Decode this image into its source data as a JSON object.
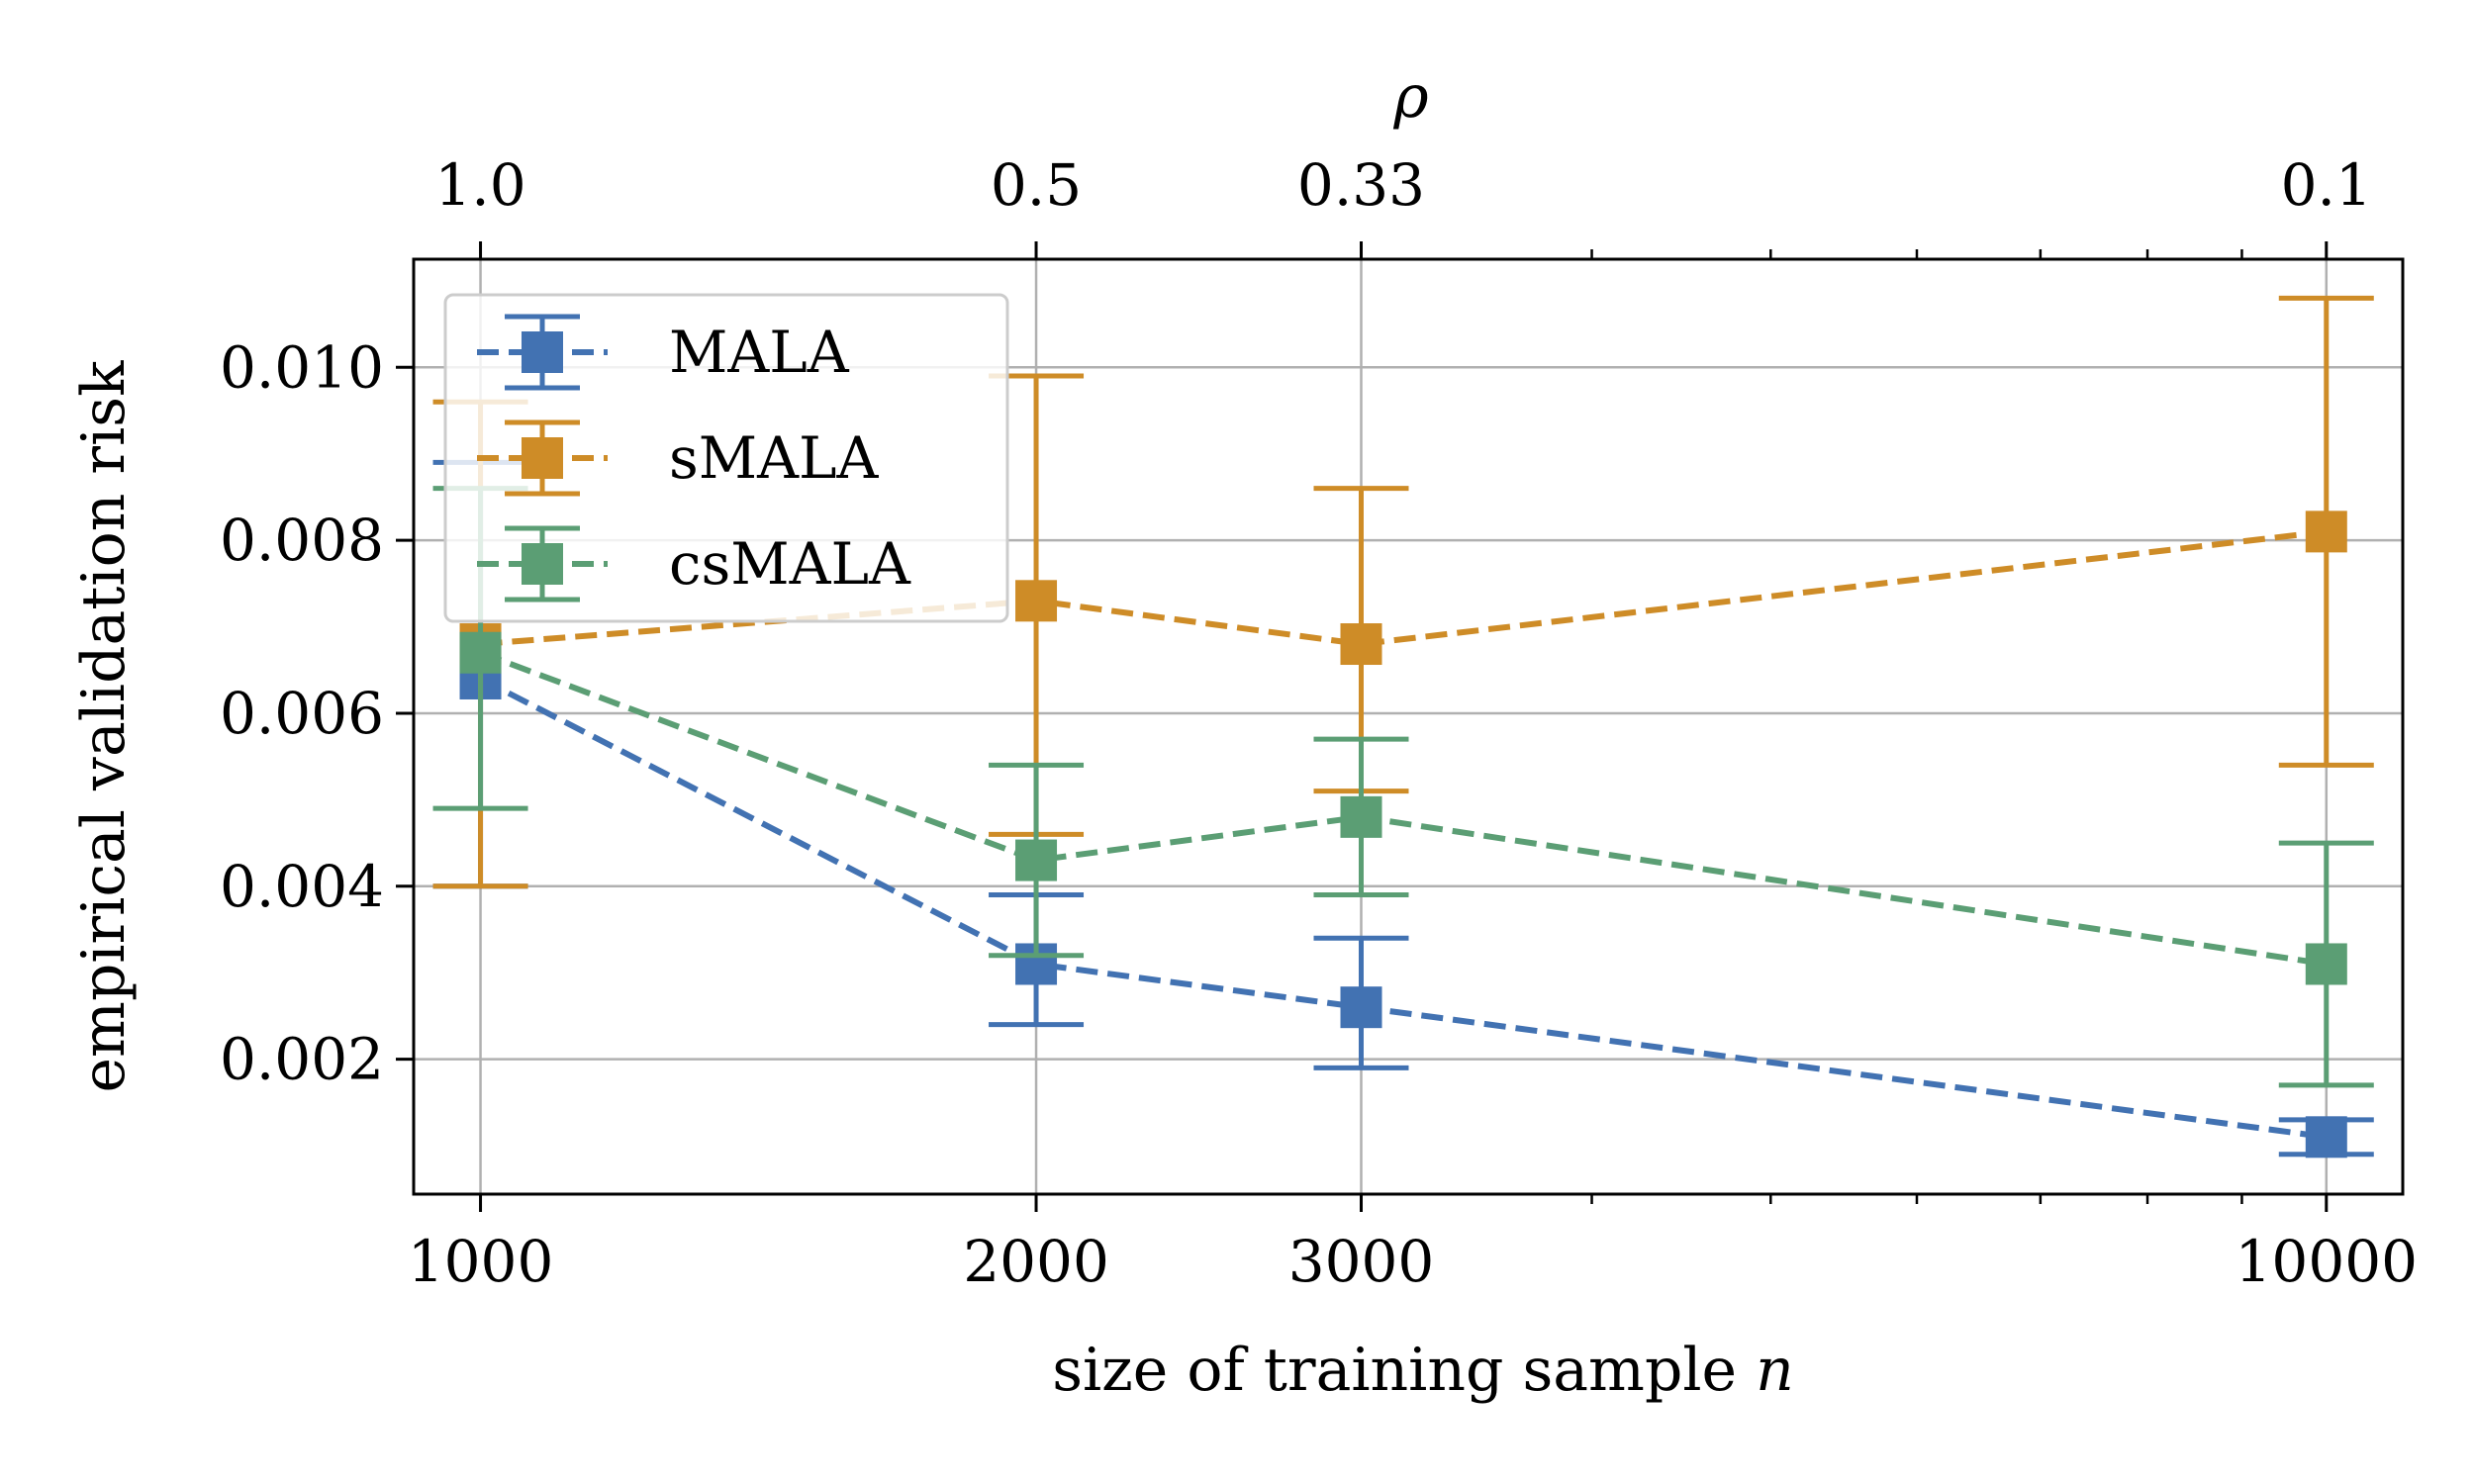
{
  "chart_data": {
    "type": "line",
    "x": [
      1000,
      2000,
      3000,
      10000
    ],
    "xscale": "log",
    "xlim": [
      920,
      11000
    ],
    "ylim": [
      0.00044,
      0.01125
    ],
    "xlabel_prefix": "size of training sample ",
    "xlabel_var": "n",
    "ylabel": "empirical validation risk",
    "secondary_xlabel": "ρ",
    "x_tick_labels": [
      "1000",
      "2000",
      "3000",
      "10000"
    ],
    "y_ticks": [
      0.002,
      0.004,
      0.006,
      0.008,
      0.01
    ],
    "y_tick_labels": [
      "0.002",
      "0.004",
      "0.006",
      "0.008",
      "0.010"
    ],
    "top_ticks": [
      1000,
      2000,
      3000,
      10000
    ],
    "top_tick_labels": [
      "1.0",
      "0.5",
      "0.33",
      "0.1"
    ],
    "grid": true,
    "legend_position": "top-left",
    "series": [
      {
        "name": "MALA",
        "color": "#4272b2",
        "values": [
          0.0064,
          0.0031,
          0.0026,
          0.0011
        ],
        "err_low": [
          0.004,
          0.0024,
          0.0019,
          0.0009
        ],
        "err_high": [
          0.0089,
          0.0039,
          0.0034,
          0.0013
        ]
      },
      {
        "name": "sMALA",
        "color": "#ce8c27",
        "values": [
          0.0068,
          0.0073,
          0.0068,
          0.0081
        ],
        "err_low": [
          0.004,
          0.0046,
          0.0051,
          0.0054
        ],
        "err_high": [
          0.0096,
          0.0099,
          0.0086,
          0.0108
        ]
      },
      {
        "name": "csMALA",
        "color": "#5b9e74",
        "values": [
          0.0067,
          0.0043,
          0.0048,
          0.0031
        ],
        "err_low": [
          0.0049,
          0.0032,
          0.0039,
          0.0017
        ],
        "err_high": [
          0.0086,
          0.0054,
          0.0057,
          0.0045
        ]
      }
    ]
  }
}
